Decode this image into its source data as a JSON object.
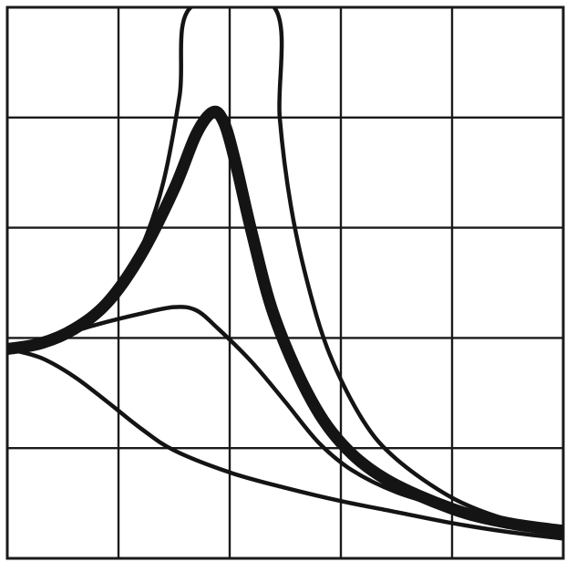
{
  "chart_data": {
    "type": "line",
    "title": "",
    "xlabel": "",
    "ylabel": "",
    "xlim": [
      0,
      5
    ],
    "ylim": [
      0,
      5
    ],
    "grid": true,
    "x_gridlines": [
      0,
      1,
      2,
      3,
      4,
      5
    ],
    "y_gridlines": [
      0,
      1,
      2,
      3,
      4,
      5
    ],
    "vertical_marker": {
      "x": 2.0,
      "style": "dashed"
    },
    "line_color": "#141414",
    "series": [
      {
        "thick": false,
        "points": [
          [
            0,
            1.9
          ],
          [
            0.25,
            1.94
          ],
          [
            0.5,
            2.02
          ],
          [
            0.75,
            2.18
          ],
          [
            1.0,
            2.45
          ],
          [
            1.2,
            2.8
          ],
          [
            1.4,
            3.4
          ],
          [
            1.55,
            4.2
          ],
          [
            1.65,
            5.0
          ],
          [
            2.4,
            5.0
          ],
          [
            2.45,
            4.0
          ],
          [
            2.55,
            3.2
          ],
          [
            2.7,
            2.5
          ],
          [
            2.9,
            1.85
          ],
          [
            3.2,
            1.25
          ],
          [
            3.5,
            0.9
          ],
          [
            4.0,
            0.55
          ],
          [
            4.5,
            0.35
          ],
          [
            5.0,
            0.25
          ]
        ]
      },
      {
        "thick": true,
        "points": [
          [
            0,
            1.9
          ],
          [
            0.3,
            1.95
          ],
          [
            0.6,
            2.08
          ],
          [
            0.9,
            2.32
          ],
          [
            1.2,
            2.75
          ],
          [
            1.5,
            3.35
          ],
          [
            1.7,
            3.85
          ],
          [
            1.85,
            4.05
          ],
          [
            1.95,
            3.95
          ],
          [
            2.05,
            3.6
          ],
          [
            2.2,
            2.95
          ],
          [
            2.4,
            2.2
          ],
          [
            2.7,
            1.5
          ],
          [
            3.0,
            1.05
          ],
          [
            3.4,
            0.72
          ],
          [
            4.0,
            0.45
          ],
          [
            4.5,
            0.32
          ],
          [
            5.0,
            0.25
          ]
        ]
      },
      {
        "thick": false,
        "points": [
          [
            0,
            1.9
          ],
          [
            0.4,
            2.0
          ],
          [
            0.8,
            2.12
          ],
          [
            1.2,
            2.22
          ],
          [
            1.5,
            2.28
          ],
          [
            1.7,
            2.25
          ],
          [
            1.9,
            2.08
          ],
          [
            2.2,
            1.78
          ],
          [
            2.5,
            1.42
          ],
          [
            2.8,
            1.05
          ],
          [
            3.1,
            0.8
          ],
          [
            3.5,
            0.6
          ],
          [
            4.0,
            0.45
          ],
          [
            4.5,
            0.33
          ],
          [
            5.0,
            0.25
          ]
        ]
      },
      {
        "thick": false,
        "points": [
          [
            0,
            1.9
          ],
          [
            0.3,
            1.82
          ],
          [
            0.6,
            1.65
          ],
          [
            0.9,
            1.42
          ],
          [
            1.2,
            1.18
          ],
          [
            1.5,
            0.98
          ],
          [
            2.0,
            0.78
          ],
          [
            2.5,
            0.64
          ],
          [
            3.0,
            0.52
          ],
          [
            3.5,
            0.42
          ],
          [
            4.0,
            0.32
          ],
          [
            4.5,
            0.24
          ],
          [
            5.0,
            0.18
          ]
        ]
      }
    ]
  }
}
